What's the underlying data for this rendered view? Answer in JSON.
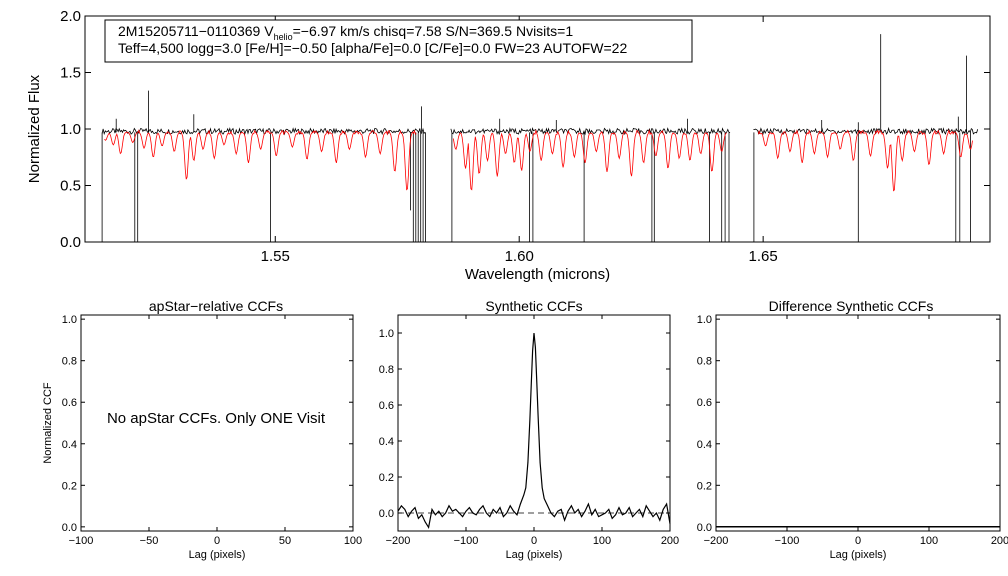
{
  "colors": {
    "observed": "#000000",
    "model": "#ff0000",
    "axis": "#000000",
    "zero_line": "#000000"
  },
  "top": {
    "annotation_line1_a": "2M15205711−0110369  V",
    "annotation_line1_sub": "helio",
    "annotation_line1_b": "=−6.97 km/s  chisq=7.58  S/N=369.5  Nvisits=1",
    "annotation_line2": "Teff=4,500 logg=3.0 [Fe/H]=−0.50 [alpha/Fe]=0.0 [C/Fe]=0.0 FW=23 AUTOFW=22"
  },
  "panels": {
    "apstar": {
      "title": "apStar−relative CCFs",
      "message": "No apStar CCFs.  Only ONE Visit"
    },
    "synthetic": {
      "title": "Synthetic CCFs"
    },
    "difference": {
      "title": "Difference Synthetic CCFs"
    }
  },
  "chart_data": [
    {
      "type": "line",
      "id": "spectrum",
      "title": "",
      "xlabel": "Wavelength (microns)",
      "ylabel": "Normalized Flux",
      "xlim": [
        1.511,
        1.6965
      ],
      "ylim": [
        0.0,
        2.0
      ],
      "xticks": [
        1.55,
        1.6,
        1.65
      ],
      "xtick_labels": [
        "1.55",
        "1.60",
        "1.65"
      ],
      "yticks": [
        0.0,
        0.5,
        1.0,
        1.5,
        2.0
      ],
      "ytick_labels": [
        "0.0",
        "0.5",
        "1.0",
        "1.5",
        "2.0"
      ],
      "chips": [
        [
          1.5145,
          1.5808
        ],
        [
          1.586,
          1.6432
        ],
        [
          1.648,
          1.694
        ]
      ],
      "model_ranges": [
        [
          1.515,
          1.579
        ],
        [
          1.5865,
          1.6425
        ],
        [
          1.649,
          1.693
        ]
      ],
      "series": [
        {
          "role": "observed",
          "continuum": 0.98,
          "deep_absorptions": [
            [
              1.5145,
              0.0
            ],
            [
              1.5212,
              0.0
            ],
            [
              1.5218,
              0.0
            ],
            [
              1.549,
              0.0
            ],
            [
              1.5777,
              0.28
            ],
            [
              1.5783,
              0.0
            ],
            [
              1.5788,
              0.0
            ],
            [
              1.5793,
              0.0
            ],
            [
              1.5798,
              0.0
            ],
            [
              1.5803,
              0.0
            ],
            [
              1.5808,
              0.0
            ],
            [
              1.5862,
              0.0
            ],
            [
              1.6021,
              0.0
            ],
            [
              1.6028,
              0.0
            ],
            [
              1.6133,
              0.0
            ],
            [
              1.6272,
              0.0
            ],
            [
              1.6277,
              0.0
            ],
            [
              1.639,
              0.0
            ],
            [
              1.6415,
              0.0
            ],
            [
              1.6422,
              0.0
            ],
            [
              1.643,
              0.0
            ],
            [
              1.6481,
              0.0
            ],
            [
              1.6695,
              0.0
            ],
            [
              1.6895,
              0.0
            ],
            [
              1.6903,
              0.0
            ],
            [
              1.6925,
              0.0
            ]
          ],
          "emission_spikes": [
            [
              1.5174,
              1.09
            ],
            [
              1.524,
              1.34
            ],
            [
              1.5333,
              1.13
            ],
            [
              1.58,
              1.2
            ],
            [
              1.596,
              1.09
            ],
            [
              1.6076,
              1.08
            ],
            [
              1.6345,
              1.09
            ],
            [
              1.662,
              1.08
            ],
            [
              1.6695,
              1.06
            ],
            [
              1.6741,
              1.84
            ],
            [
              1.69,
              1.11
            ],
            [
              1.6917,
              1.65
            ]
          ]
        },
        {
          "role": "model",
          "continuum": 0.97,
          "lines": [
            [
              1.5152,
              0.9
            ],
            [
              1.5168,
              0.86
            ],
            [
              1.5183,
              0.78
            ],
            [
              1.5208,
              0.88
            ],
            [
              1.5231,
              0.83
            ],
            [
              1.525,
              0.75
            ],
            [
              1.5268,
              0.85
            ],
            [
              1.5293,
              0.8
            ],
            [
              1.5318,
              0.55
            ],
            [
              1.5333,
              0.72
            ],
            [
              1.5352,
              0.82
            ],
            [
              1.5375,
              0.74
            ],
            [
              1.5395,
              0.86
            ],
            [
              1.542,
              0.78
            ],
            [
              1.5445,
              0.7
            ],
            [
              1.547,
              0.82
            ],
            [
              1.5502,
              0.76
            ],
            [
              1.5535,
              0.84
            ],
            [
              1.5565,
              0.73
            ],
            [
              1.5595,
              0.8
            ],
            [
              1.5625,
              0.7
            ],
            [
              1.5652,
              0.82
            ],
            [
              1.5685,
              0.75
            ],
            [
              1.5715,
              0.78
            ],
            [
              1.5745,
              0.62
            ],
            [
              1.577,
              0.45
            ],
            [
              1.587,
              0.82
            ],
            [
              1.589,
              0.65
            ],
            [
              1.5902,
              0.45
            ],
            [
              1.5918,
              0.6
            ],
            [
              1.5935,
              0.72
            ],
            [
              1.5955,
              0.58
            ],
            [
              1.5972,
              0.78
            ],
            [
              1.599,
              0.7
            ],
            [
              1.6005,
              0.63
            ],
            [
              1.6022,
              0.8
            ],
            [
              1.6045,
              0.72
            ],
            [
              1.6068,
              0.78
            ],
            [
              1.609,
              0.66
            ],
            [
              1.6113,
              0.75
            ],
            [
              1.6135,
              0.7
            ],
            [
              1.6158,
              0.8
            ],
            [
              1.618,
              0.62
            ],
            [
              1.6205,
              0.74
            ],
            [
              1.623,
              0.58
            ],
            [
              1.6255,
              0.7
            ],
            [
              1.628,
              0.76
            ],
            [
              1.6305,
              0.65
            ],
            [
              1.6328,
              0.74
            ],
            [
              1.635,
              0.72
            ],
            [
              1.6372,
              0.78
            ],
            [
              1.6395,
              0.62
            ],
            [
              1.6415,
              0.8
            ],
            [
              1.6505,
              0.85
            ],
            [
              1.653,
              0.74
            ],
            [
              1.6555,
              0.8
            ],
            [
              1.658,
              0.7
            ],
            [
              1.6605,
              0.78
            ],
            [
              1.6632,
              0.75
            ],
            [
              1.6658,
              0.82
            ],
            [
              1.6685,
              0.72
            ],
            [
              1.672,
              0.76
            ],
            [
              1.6755,
              0.65
            ],
            [
              1.6768,
              0.44
            ],
            [
              1.6785,
              0.72
            ],
            [
              1.681,
              0.8
            ],
            [
              1.684,
              0.68
            ],
            [
              1.687,
              0.78
            ],
            [
              1.6905,
              0.75
            ],
            [
              1.6925,
              0.82
            ]
          ]
        }
      ]
    },
    {
      "type": "line",
      "id": "apstar_ccf",
      "title": "apStar−relative CCFs",
      "xlabel": "Lag (pixels)",
      "ylabel": "Normalized CCF",
      "xlim": [
        -100,
        100
      ],
      "ylim": [
        -0.02,
        1.02
      ],
      "xticks": [
        -100,
        -50,
        0,
        50,
        100
      ],
      "xtick_labels": [
        "−100",
        "−50",
        "0",
        "50",
        "100"
      ],
      "yticks": [
        0.0,
        0.2,
        0.4,
        0.6,
        0.8,
        1.0
      ],
      "ytick_labels": [
        "0.0",
        "0.2",
        "0.4",
        "0.6",
        "0.8",
        "1.0"
      ],
      "series": []
    },
    {
      "type": "line",
      "id": "synthetic_ccf",
      "title": "Synthetic CCFs",
      "xlabel": "Lag (pixels)",
      "ylabel": "",
      "xlim": [
        -200,
        200
      ],
      "ylim": [
        -0.1,
        1.1
      ],
      "xticks": [
        -200,
        -100,
        0,
        100,
        200
      ],
      "xtick_labels": [
        "−200",
        "−100",
        "0",
        "100",
        "200"
      ],
      "yticks": [
        0.0,
        0.2,
        0.4,
        0.6,
        0.8,
        1.0
      ],
      "ytick_labels": [
        "0.0",
        "0.2",
        "0.4",
        "0.6",
        "0.8",
        "1.0"
      ],
      "reference_line": 0.0,
      "series": [
        {
          "x": [
            -200,
            -195,
            -190,
            -185,
            -180,
            -175,
            -170,
            -165,
            -160,
            -155,
            -150,
            -145,
            -140,
            -135,
            -130,
            -125,
            -120,
            -115,
            -110,
            -105,
            -100,
            -95,
            -90,
            -85,
            -80,
            -75,
            -70,
            -65,
            -60,
            -55,
            -50,
            -45,
            -40,
            -35,
            -30,
            -25,
            -20,
            -15,
            -12,
            -9,
            -6,
            -4,
            -2,
            0,
            2,
            4,
            6,
            9,
            12,
            15,
            20,
            25,
            30,
            35,
            40,
            45,
            50,
            55,
            60,
            65,
            70,
            75,
            80,
            85,
            90,
            95,
            100,
            105,
            110,
            115,
            120,
            125,
            130,
            135,
            140,
            145,
            150,
            155,
            160,
            165,
            170,
            175,
            180,
            185,
            190,
            195,
            200
          ],
          "y": [
            0.01,
            0.04,
            0.02,
            -0.02,
            0.01,
            0.03,
            -0.03,
            -0.01,
            -0.05,
            -0.08,
            0.02,
            -0.01,
            0.01,
            -0.02,
            0.0,
            0.04,
            0.01,
            0.02,
            0.0,
            -0.02,
            0.01,
            0.03,
            0.0,
            -0.01,
            0.02,
            0.04,
            0.0,
            -0.02,
            0.02,
            0.0,
            0.03,
            -0.02,
            0.0,
            0.04,
            0.01,
            -0.01,
            0.05,
            0.1,
            0.14,
            0.28,
            0.52,
            0.72,
            0.9,
            1.0,
            0.92,
            0.74,
            0.54,
            0.28,
            0.14,
            0.08,
            0.04,
            0.0,
            -0.02,
            0.01,
            0.02,
            -0.04,
            0.01,
            0.04,
            0.0,
            0.02,
            -0.02,
            0.01,
            0.05,
            -0.01,
            0.02,
            -0.02,
            -0.01,
            0.0,
            0.02,
            -0.03,
            -0.01,
            0.03,
            -0.01,
            0.0,
            0.03,
            -0.02,
            0.0,
            0.02,
            -0.02,
            0.04,
            0.01,
            -0.02,
            0.0,
            -0.04,
            0.02,
            0.05,
            -0.06
          ]
        }
      ]
    },
    {
      "type": "line",
      "id": "difference_ccf",
      "title": "Difference Synthetic CCFs",
      "xlabel": "Lag (pixels)",
      "ylabel": "",
      "xlim": [
        -200,
        200
      ],
      "ylim": [
        -0.02,
        1.02
      ],
      "xticks": [
        -200,
        -100,
        0,
        100,
        200
      ],
      "xtick_labels": [
        "−200",
        "−100",
        "0",
        "100",
        "200"
      ],
      "yticks": [
        0.0,
        0.2,
        0.4,
        0.6,
        0.8,
        1.0
      ],
      "ytick_labels": [
        "0.0",
        "0.2",
        "0.4",
        "0.6",
        "0.8",
        "1.0"
      ],
      "series": [
        {
          "x": [
            -200,
            200
          ],
          "y": [
            0.0,
            0.0
          ]
        }
      ]
    }
  ]
}
